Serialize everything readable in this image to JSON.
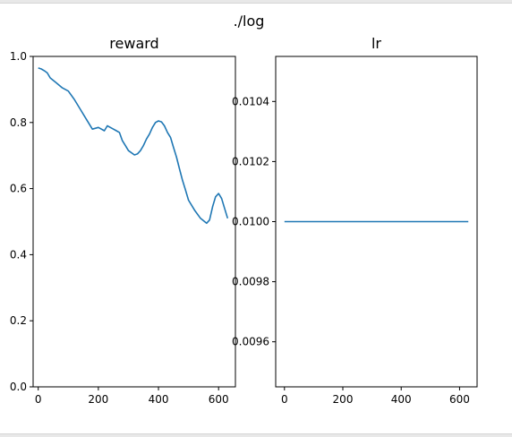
{
  "figure": {
    "suptitle": "./log"
  },
  "chart_data": [
    {
      "type": "line",
      "title": "reward",
      "xlabel": "",
      "ylabel": "",
      "xlim": [
        -17,
        656
      ],
      "ylim": [
        0.0,
        1.0
      ],
      "xticks": [
        0,
        200,
        400,
        600
      ],
      "yticks": [
        0.0,
        0.2,
        0.4,
        0.6,
        0.8,
        1.0
      ],
      "ytick_labels": [
        "0.0",
        "0.2",
        "0.4",
        "0.6",
        "0.8",
        "1.0"
      ],
      "grid": false,
      "color": "#1f77b4",
      "x": [
        0,
        10,
        20,
        30,
        40,
        60,
        80,
        100,
        120,
        140,
        160,
        180,
        200,
        220,
        230,
        240,
        250,
        260,
        270,
        280,
        290,
        300,
        320,
        330,
        340,
        350,
        360,
        370,
        380,
        390,
        400,
        410,
        420,
        430,
        440,
        450,
        460,
        470,
        480,
        490,
        500,
        520,
        540,
        560,
        570,
        580,
        590,
        600,
        610,
        620,
        630
      ],
      "y": [
        0.965,
        0.962,
        0.957,
        0.95,
        0.935,
        0.92,
        0.905,
        0.895,
        0.87,
        0.84,
        0.81,
        0.78,
        0.785,
        0.775,
        0.79,
        0.785,
        0.78,
        0.775,
        0.77,
        0.745,
        0.73,
        0.715,
        0.702,
        0.705,
        0.715,
        0.73,
        0.75,
        0.765,
        0.785,
        0.8,
        0.805,
        0.802,
        0.79,
        0.77,
        0.755,
        0.725,
        0.695,
        0.66,
        0.625,
        0.595,
        0.565,
        0.535,
        0.51,
        0.495,
        0.505,
        0.545,
        0.575,
        0.585,
        0.57,
        0.54,
        0.51
      ]
    },
    {
      "type": "line",
      "title": "lr",
      "xlabel": "",
      "ylabel": "",
      "xlim": [
        -30,
        660
      ],
      "ylim": [
        0.00945,
        0.01055
      ],
      "xticks": [
        0,
        200,
        400,
        600
      ],
      "yticks": [
        0.0096,
        0.0098,
        0.01,
        0.0102,
        0.0104
      ],
      "ytick_labels": [
        "0.0096",
        "0.0098",
        "0.0100",
        "0.0102",
        "0.0104"
      ],
      "grid": false,
      "color": "#1f77b4",
      "x": [
        0,
        630
      ],
      "y": [
        0.01,
        0.01
      ]
    }
  ]
}
